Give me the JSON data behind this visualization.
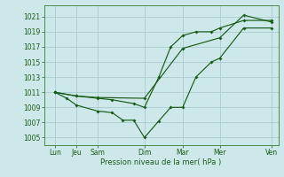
{
  "xlabel": "Pression niveau de la mer( hPa )",
  "background_color": "#cce8e8",
  "grid_color": "#aacccc",
  "line_color": "#1a5c1a",
  "ylim": [
    1004,
    1022.5
  ],
  "yticks": [
    1005,
    1007,
    1009,
    1011,
    1013,
    1015,
    1017,
    1019,
    1021
  ],
  "xlim": [
    0,
    1
  ],
  "x_tick_positions": [
    0.065,
    0.155,
    0.245,
    0.44,
    0.6,
    0.755,
    0.97
  ],
  "x_tick_labels": [
    "Lun",
    "Jeu",
    "Sam",
    "Dim",
    "Mar",
    "Mer",
    "Ven"
  ],
  "series1_x": [
    0.065,
    0.155,
    0.245,
    0.44,
    0.6,
    0.755,
    0.855,
    0.97
  ],
  "series1_y": [
    1011,
    1010.5,
    1010.3,
    1010.2,
    1016.8,
    1018.2,
    1021.2,
    1020.3
  ],
  "series2_x": [
    0.065,
    0.115,
    0.155,
    0.245,
    0.305,
    0.35,
    0.395,
    0.44,
    0.5,
    0.55,
    0.6,
    0.655,
    0.72,
    0.755,
    0.855,
    0.97
  ],
  "series2_y": [
    1011,
    1010.2,
    1009.3,
    1008.5,
    1008.3,
    1007.3,
    1007.3,
    1005,
    1007.2,
    1009,
    1009,
    1013,
    1015.0,
    1015.5,
    1019.5,
    1019.5
  ],
  "series3_x": [
    0.065,
    0.155,
    0.245,
    0.305,
    0.395,
    0.44,
    0.5,
    0.55,
    0.6,
    0.655,
    0.72,
    0.755,
    0.855,
    0.97
  ],
  "series3_y": [
    1011,
    1010.5,
    1010.2,
    1010,
    1009.5,
    1009,
    1013,
    1017,
    1018.5,
    1019,
    1019,
    1019.5,
    1020.5,
    1020.5
  ]
}
